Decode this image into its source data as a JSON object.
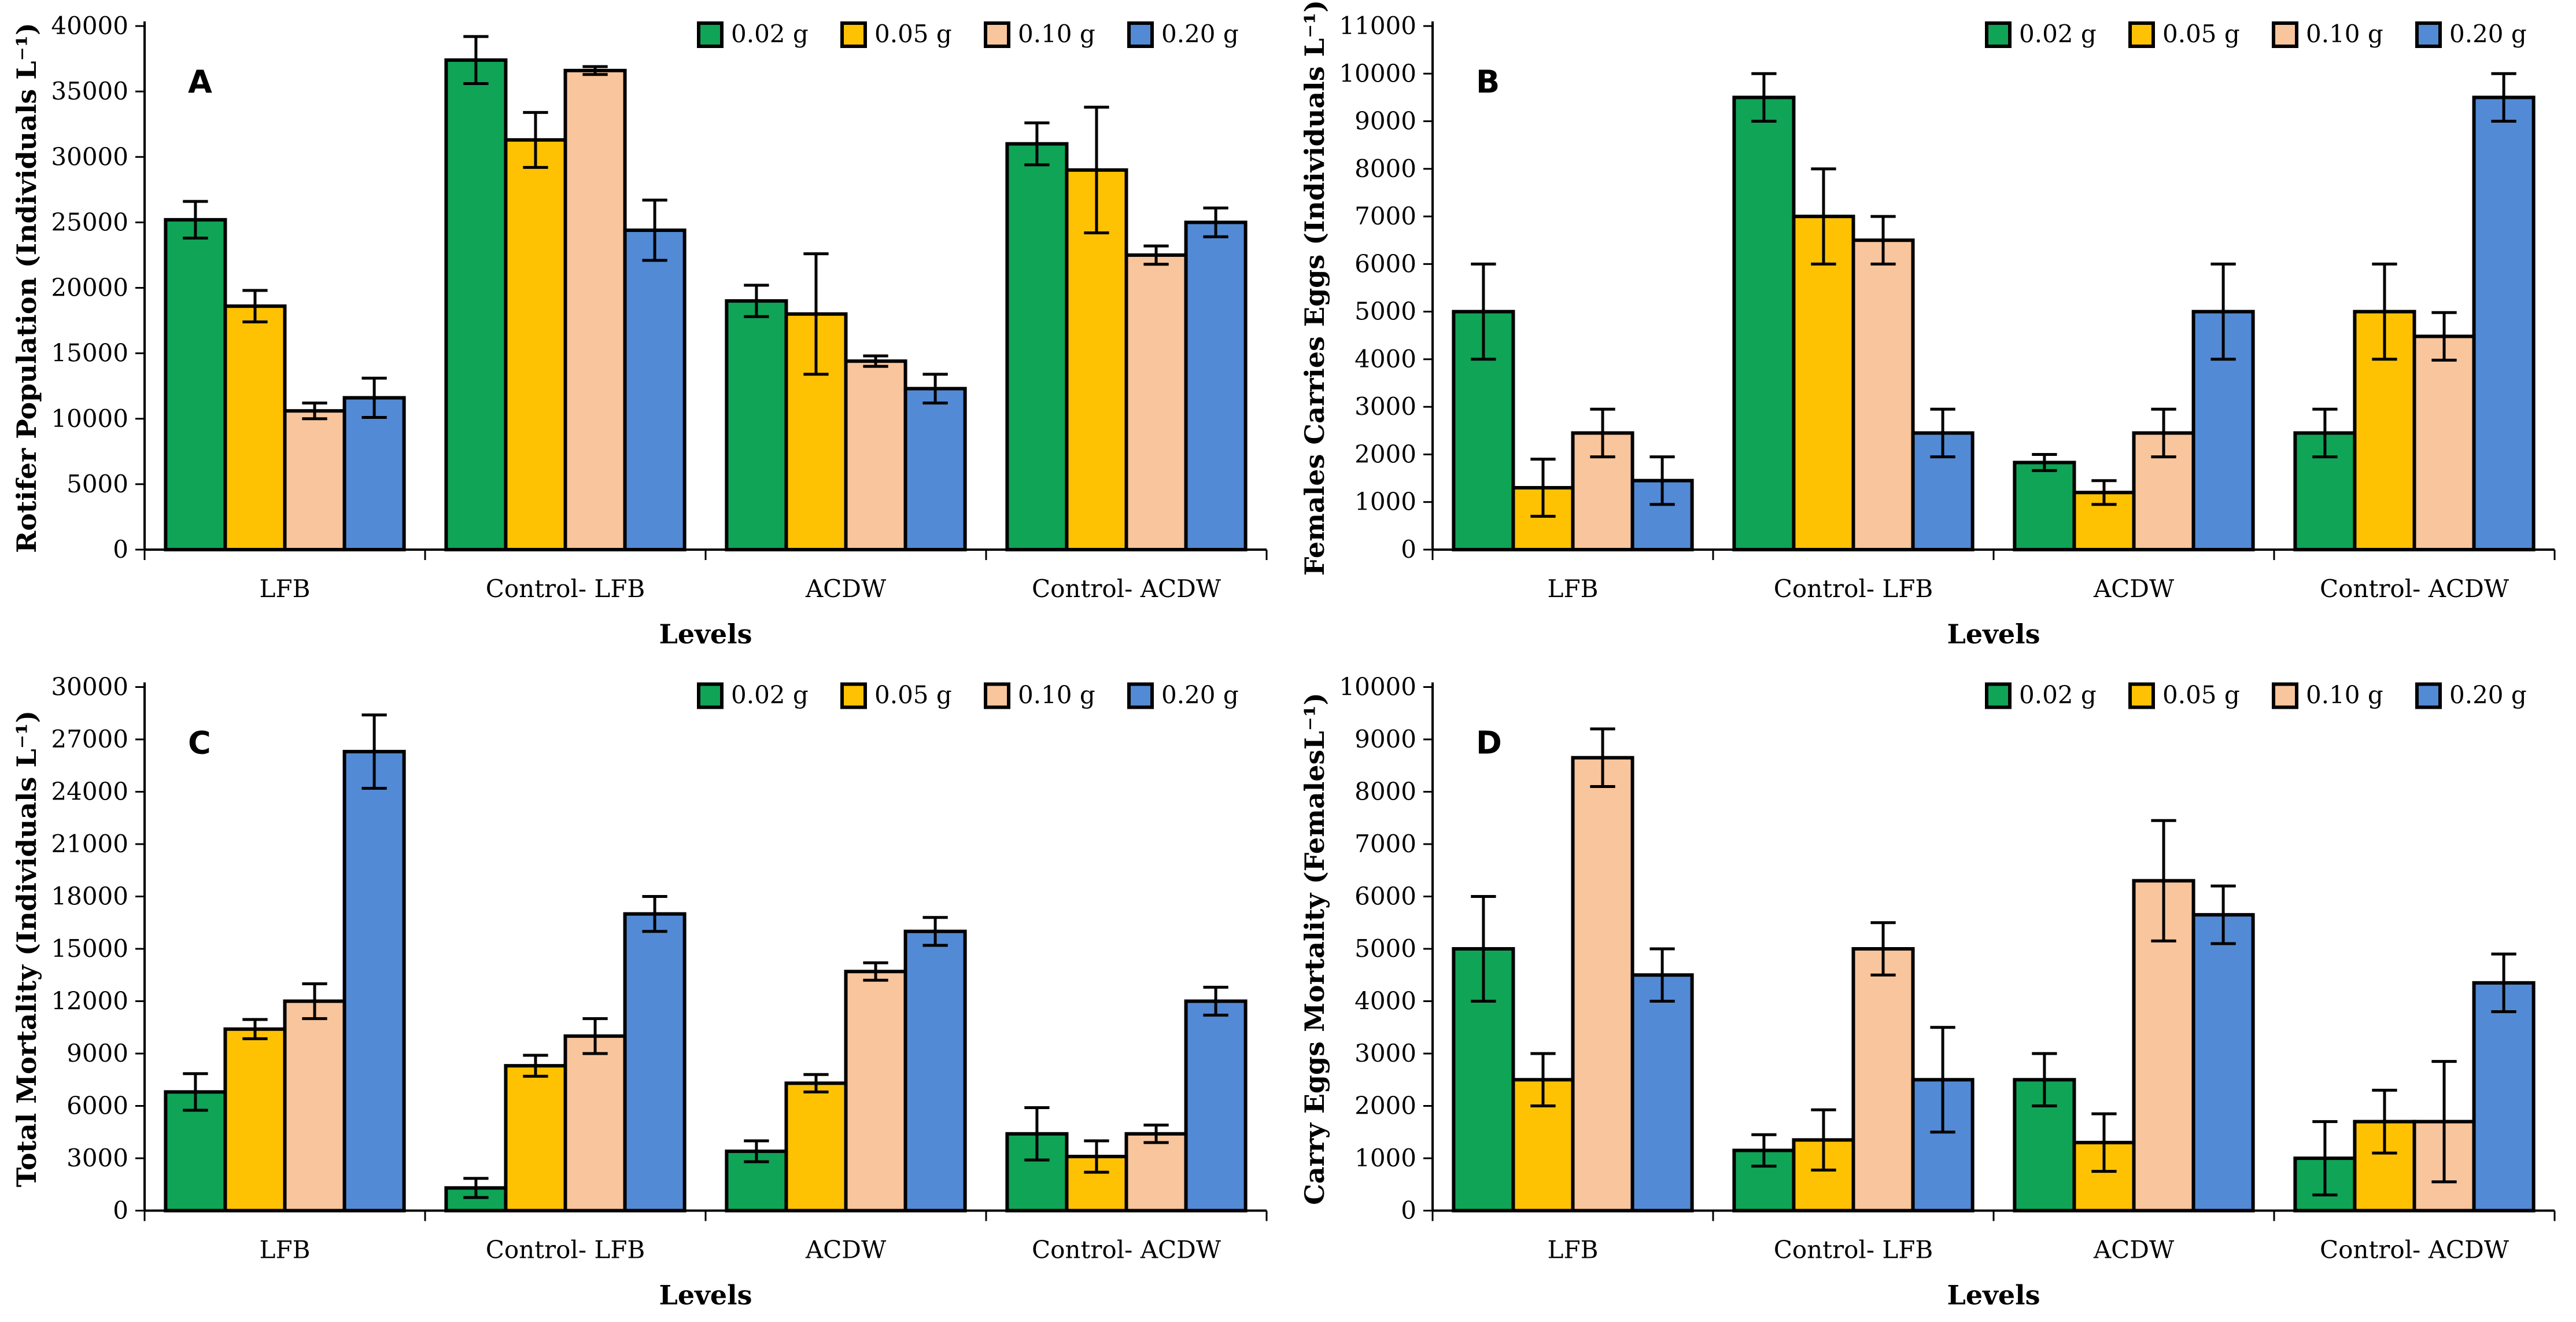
{
  "figure": {
    "background": "#ffffff",
    "axis_color": "#000000",
    "bar_border_color": "#000000",
    "error_bar_color": "#000000",
    "xlabel": "Levels",
    "categories": [
      "LFB",
      "Control- LFB",
      "ACDW",
      "Control- ACDW"
    ],
    "legend": {
      "labels": [
        "0.02 g",
        "0.05 g",
        "0.10 g",
        "0.20 g"
      ],
      "colors": [
        "#10A456",
        "#FFC203",
        "#F8C59D",
        "#538AD5"
      ],
      "position": "top-right"
    }
  },
  "chart_data": [
    {
      "type": "bar",
      "panel_label": "A",
      "ylabel": "Rotifer Population (Individuals L⁻¹)",
      "xlabel": "Levels",
      "ylim": [
        0,
        40000
      ],
      "ystep": 5000,
      "grid": false,
      "error_bars": true,
      "legend_position": "top-right",
      "categories": [
        "LFB",
        "Control- LFB",
        "ACDW",
        "Control- ACDW"
      ],
      "series": [
        {
          "name": "0.02 g",
          "color": "#10A456",
          "values": [
            25200,
            37400,
            19000,
            31000
          ],
          "errors": [
            1400,
            1800,
            1200,
            1600
          ]
        },
        {
          "name": "0.05 g",
          "color": "#FFC203",
          "values": [
            18600,
            31300,
            18000,
            29000
          ],
          "errors": [
            1200,
            2100,
            4600,
            4800
          ]
        },
        {
          "name": "0.10 g",
          "color": "#F8C59D",
          "values": [
            10600,
            36600,
            14400,
            22500
          ],
          "errors": [
            600,
            300,
            400,
            700
          ]
        },
        {
          "name": "0.20 g",
          "color": "#538AD5",
          "values": [
            11600,
            24400,
            12300,
            25000
          ],
          "errors": [
            1500,
            2300,
            1100,
            1100
          ]
        }
      ]
    },
    {
      "type": "bar",
      "panel_label": "B",
      "ylabel": "Females Carries Eggs (Individuals L⁻¹)",
      "xlabel": "Levels",
      "ylim": [
        0,
        11000
      ],
      "ystep": 1000,
      "grid": false,
      "error_bars": true,
      "legend_position": "top-right",
      "categories": [
        "LFB",
        "Control- LFB",
        "ACDW",
        "Control- ACDW"
      ],
      "series": [
        {
          "name": "0.02 g",
          "color": "#10A456",
          "values": [
            5000,
            9500,
            1830,
            2450
          ],
          "errors": [
            1000,
            500,
            170,
            500
          ]
        },
        {
          "name": "0.05 g",
          "color": "#FFC203",
          "values": [
            1300,
            7000,
            1200,
            5000
          ],
          "errors": [
            600,
            1000,
            250,
            1000
          ]
        },
        {
          "name": "0.10 g",
          "color": "#F8C59D",
          "values": [
            2450,
            6500,
            2450,
            4480
          ],
          "errors": [
            500,
            500,
            500,
            500
          ]
        },
        {
          "name": "0.20 g",
          "color": "#538AD5",
          "values": [
            1450,
            2450,
            5000,
            9500
          ],
          "errors": [
            500,
            500,
            1000,
            500
          ]
        }
      ]
    },
    {
      "type": "bar",
      "panel_label": "C",
      "ylabel": "Total Mortality (Individuals  L⁻¹)",
      "xlabel": "Levels",
      "ylim": [
        0,
        30000
      ],
      "ystep": 3000,
      "grid": false,
      "error_bars": true,
      "legend_position": "top-right",
      "categories": [
        "LFB",
        "Control- LFB",
        "ACDW",
        "Control- ACDW"
      ],
      "series": [
        {
          "name": "0.02 g",
          "color": "#10A456",
          "values": [
            6800,
            1300,
            3400,
            4400
          ],
          "errors": [
            1050,
            550,
            600,
            1500
          ]
        },
        {
          "name": "0.05 g",
          "color": "#FFC203",
          "values": [
            10400,
            8300,
            7300,
            3100
          ],
          "errors": [
            550,
            600,
            500,
            900
          ]
        },
        {
          "name": "0.10 g",
          "color": "#F8C59D",
          "values": [
            12000,
            10000,
            13700,
            4400
          ],
          "errors": [
            1000,
            1000,
            500,
            500
          ]
        },
        {
          "name": "0.20 g",
          "color": "#538AD5",
          "values": [
            26300,
            17000,
            16000,
            12000
          ],
          "errors": [
            2100,
            1000,
            800,
            800
          ]
        }
      ]
    },
    {
      "type": "bar",
      "panel_label": "D",
      "ylabel": "Carry Eggs Mortality (FemalesL⁻¹)",
      "xlabel": "Levels",
      "ylim": [
        0,
        10000
      ],
      "ystep": 1000,
      "grid": false,
      "error_bars": true,
      "legend_position": "top-right",
      "categories": [
        "LFB",
        "Control- LFB",
        "ACDW",
        "Control- ACDW"
      ],
      "series": [
        {
          "name": "0.02 g",
          "color": "#10A456",
          "values": [
            5000,
            1150,
            2500,
            1000
          ],
          "errors": [
            1000,
            300,
            500,
            700
          ]
        },
        {
          "name": "0.05 g",
          "color": "#FFC203",
          "values": [
            2500,
            1350,
            1300,
            1700
          ],
          "errors": [
            500,
            575,
            550,
            600
          ]
        },
        {
          "name": "0.10 g",
          "color": "#F8C59D",
          "values": [
            8650,
            5000,
            6300,
            1700
          ],
          "errors": [
            550,
            500,
            1150,
            1150
          ]
        },
        {
          "name": "0.20 g",
          "color": "#538AD5",
          "values": [
            4500,
            2500,
            5650,
            4350
          ],
          "errors": [
            500,
            1000,
            550,
            550
          ]
        }
      ]
    }
  ]
}
